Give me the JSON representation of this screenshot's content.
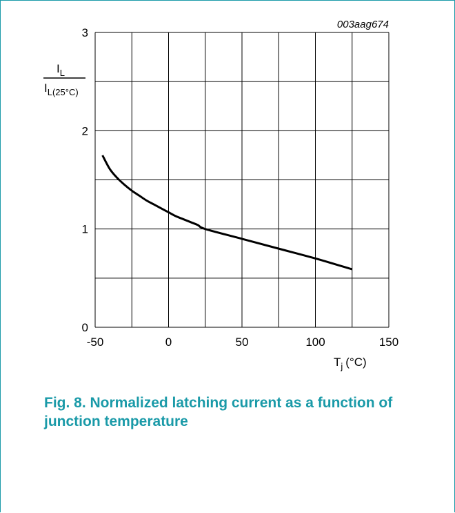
{
  "figure_id": "003aag674",
  "caption": "Fig. 8. Normalized latching current as a function of junction temperature",
  "chart_data": {
    "type": "line",
    "xlabel": {
      "base": "T",
      "sub": "j",
      "unit": "(°C)"
    },
    "ylabel": {
      "num_base": "I",
      "num_sub": "L",
      "den_base": "I",
      "den_sub": "L(25°C)"
    },
    "xlim": [
      -50,
      150
    ],
    "ylim": [
      0,
      3
    ],
    "x_ticks": [
      -50,
      0,
      50,
      100,
      150
    ],
    "y_ticks": [
      0,
      1,
      2,
      3
    ],
    "grid": true,
    "x_grid_step": 25,
    "y_grid_step": 0.5,
    "series": [
      {
        "x": [
          -45,
          -40,
          -35,
          -30,
          -25,
          -20,
          -15,
          -10,
          -5,
          0,
          5,
          10,
          15,
          20,
          25,
          50,
          75,
          100,
          125
        ],
        "y": [
          1.75,
          1.61,
          1.52,
          1.45,
          1.39,
          1.34,
          1.29,
          1.25,
          1.21,
          1.17,
          1.13,
          1.1,
          1.07,
          1.04,
          1.0,
          0.9,
          0.8,
          0.7,
          0.59
        ]
      }
    ]
  }
}
